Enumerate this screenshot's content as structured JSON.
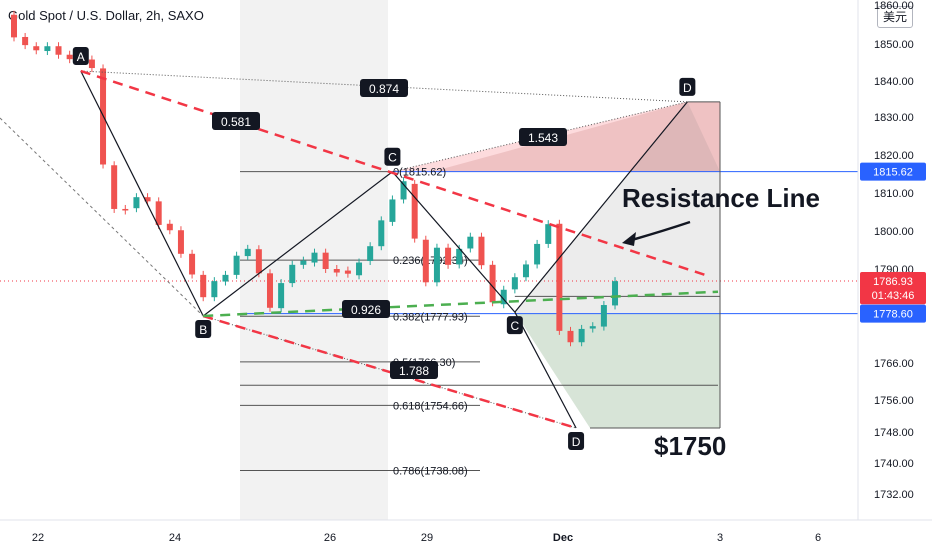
{
  "header": {
    "title": "Gold Spot / U.S. Dollar, 2h, SAXO",
    "currency_button": "美元"
  },
  "chart_data": {
    "type": "candlestick",
    "title": "Gold Spot / U.S. Dollar, 2h, SAXO",
    "ylim": [
      1726,
      1862
    ],
    "y_ticks": [
      "1860.00",
      "1850.00",
      "1840.00",
      "1830.00",
      "1820.00",
      "1810.00",
      "1800.00",
      "1790.00",
      "1766.00",
      "1756.00",
      "1748.00",
      "1740.00",
      "1732.00"
    ],
    "y_tick_values": [
      1860,
      1850,
      1840,
      1830,
      1820,
      1810,
      1800,
      1790,
      1766,
      1756,
      1748,
      1740,
      1732
    ],
    "x_ticks": [
      "22",
      "24",
      "26",
      "29",
      "Dec",
      "3",
      "6"
    ],
    "price_tags": [
      {
        "text": "1815.62",
        "value": 1815.62,
        "color": "#2962ff"
      },
      {
        "text": "1786.93",
        "value": 1786.93,
        "color": "#f23645"
      },
      {
        "text": "01:43:46",
        "value": 1783.3,
        "color": "#f23645"
      },
      {
        "text": "1778.60",
        "value": 1778.6,
        "color": "#2962ff"
      }
    ],
    "candles": [
      {
        "x": 1,
        "o": 1857.5,
        "c": 1851.7
      },
      {
        "x": 2,
        "o": 1851.8,
        "c": 1849.7
      },
      {
        "x": 3,
        "o": 1849.4,
        "c": 1848.3
      },
      {
        "x": 4,
        "o": 1848.1,
        "c": 1849.4
      },
      {
        "x": 5,
        "o": 1849.4,
        "c": 1847.1
      },
      {
        "x": 6,
        "o": 1847.1,
        "c": 1845.9
      },
      {
        "x": 7,
        "o": 1846.9,
        "c": 1845.8
      },
      {
        "x": 8,
        "o": 1845.8,
        "c": 1843.5
      },
      {
        "x": 9,
        "o": 1843.4,
        "c": 1817.5
      },
      {
        "x": 10,
        "o": 1817.3,
        "c": 1805.8
      },
      {
        "x": 11,
        "o": 1805.8,
        "c": 1805.4
      },
      {
        "x": 12,
        "o": 1806.0,
        "c": 1808.9
      },
      {
        "x": 13,
        "o": 1808.9,
        "c": 1807.8
      },
      {
        "x": 14,
        "o": 1807.8,
        "c": 1801.6
      },
      {
        "x": 15,
        "o": 1801.9,
        "c": 1800.2
      },
      {
        "x": 16,
        "o": 1800.2,
        "c": 1794.0
      },
      {
        "x": 17,
        "o": 1794.0,
        "c": 1788.6
      },
      {
        "x": 18,
        "o": 1788.5,
        "c": 1782.8
      },
      {
        "x": 19,
        "o": 1782.8,
        "c": 1786.9
      },
      {
        "x": 20,
        "o": 1786.8,
        "c": 1788.5
      },
      {
        "x": 21,
        "o": 1788.5,
        "c": 1793.5
      },
      {
        "x": 22,
        "o": 1793.4,
        "c": 1795.3
      },
      {
        "x": 23,
        "o": 1795.2,
        "c": 1788.9
      },
      {
        "x": 24,
        "o": 1788.9,
        "c": 1780.1
      },
      {
        "x": 25,
        "o": 1780.0,
        "c": 1786.4
      },
      {
        "x": 26,
        "o": 1786.4,
        "c": 1791.1
      },
      {
        "x": 27,
        "o": 1791.1,
        "c": 1792.2
      },
      {
        "x": 28,
        "o": 1791.7,
        "c": 1794.3
      },
      {
        "x": 29,
        "o": 1794.3,
        "c": 1790.0
      },
      {
        "x": 30,
        "o": 1790.0,
        "c": 1789.1
      },
      {
        "x": 31,
        "o": 1789.6,
        "c": 1788.8
      },
      {
        "x": 32,
        "o": 1788.4,
        "c": 1791.7
      },
      {
        "x": 33,
        "o": 1792.1,
        "c": 1796.0
      },
      {
        "x": 34,
        "o": 1796.0,
        "c": 1802.8
      },
      {
        "x": 35,
        "o": 1802.4,
        "c": 1808.3
      },
      {
        "x": 36,
        "o": 1808.3,
        "c": 1813.1
      },
      {
        "x": 37,
        "o": 1812.4,
        "c": 1798.0
      },
      {
        "x": 38,
        "o": 1797.7,
        "c": 1786.6
      },
      {
        "x": 39,
        "o": 1786.6,
        "c": 1795.6
      },
      {
        "x": 40,
        "o": 1795.6,
        "c": 1791.1
      },
      {
        "x": 41,
        "o": 1791.2,
        "c": 1795.3
      },
      {
        "x": 42,
        "o": 1795.4,
        "c": 1798.5
      },
      {
        "x": 43,
        "o": 1798.5,
        "c": 1791.0
      },
      {
        "x": 44,
        "o": 1791.1,
        "c": 1781.5
      },
      {
        "x": 45,
        "o": 1781.0,
        "c": 1784.7
      },
      {
        "x": 46,
        "o": 1784.8,
        "c": 1787.9
      },
      {
        "x": 47,
        "o": 1787.9,
        "c": 1791.2
      },
      {
        "x": 48,
        "o": 1791.2,
        "c": 1796.6
      },
      {
        "x": 49,
        "o": 1796.6,
        "c": 1801.8
      },
      {
        "x": 50,
        "o": 1801.9,
        "c": 1774.2
      },
      {
        "x": 51,
        "o": 1774.2,
        "c": 1771.3
      },
      {
        "x": 52,
        "o": 1771.3,
        "c": 1774.7
      },
      {
        "x": 53,
        "o": 1774.8,
        "c": 1775.4
      },
      {
        "x": 54,
        "o": 1775.3,
        "c": 1780.8
      },
      {
        "x": 55,
        "o": 1780.7,
        "c": 1786.9
      }
    ],
    "fib_levels": [
      {
        "label": "0(1815.62)",
        "value": 1815.62
      },
      {
        "label": "0.236(1792.34)",
        "value": 1792.34
      },
      {
        "label": "0.382(1777.93)",
        "value": 1777.93
      },
      {
        "label": "0.5(1766.30)",
        "value": 1766.3
      },
      {
        "label": "0.618(1754.66)",
        "value": 1754.66
      },
      {
        "label": "0.786(1738.08)",
        "value": 1738.08
      }
    ],
    "pattern_points": [
      {
        "label": "A",
        "x": 7,
        "y": 1842.7
      },
      {
        "label": "B",
        "x": 18,
        "y": 1778.0
      },
      {
        "label": "C",
        "x": 35,
        "y": 1815.6
      },
      {
        "label": "C",
        "x": 46,
        "y": 1779.0
      },
      {
        "label": "D",
        "x": 61.5,
        "y": 1834.2
      },
      {
        "label": "D",
        "x": 51.5,
        "y": 1749.0
      }
    ],
    "ratios": [
      "0.581",
      "0.874",
      "1.543",
      "0.926",
      "1.788"
    ],
    "annotations": [
      "Resistance Line",
      "$1750"
    ]
  }
}
